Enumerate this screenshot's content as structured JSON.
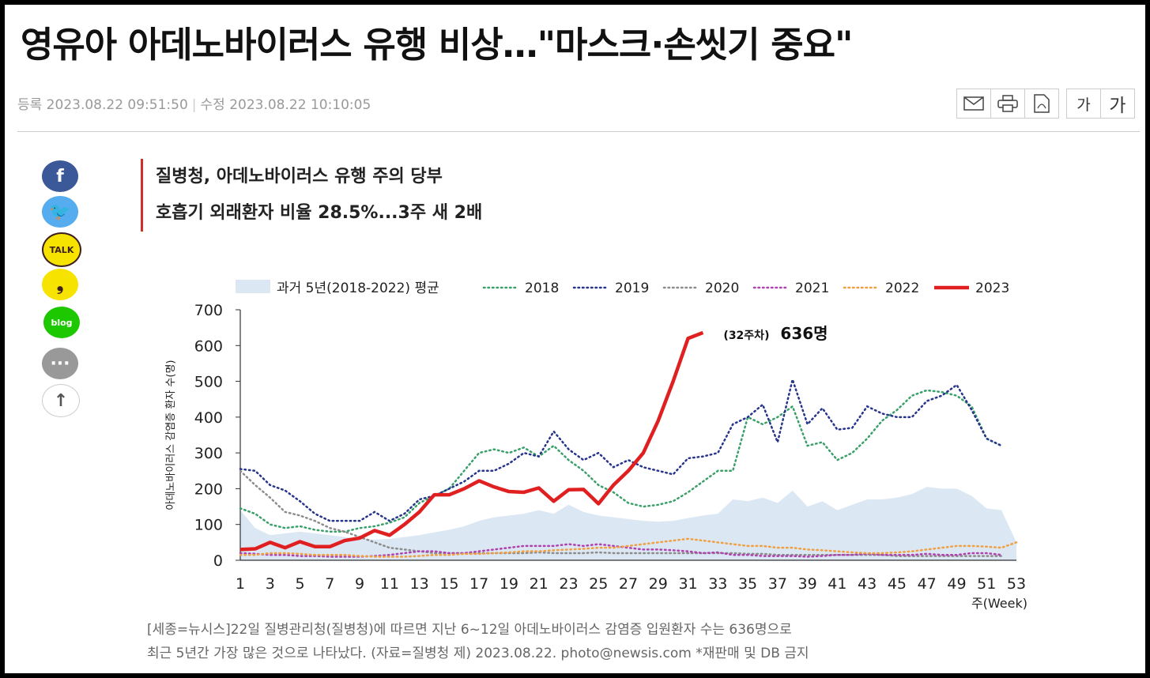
{
  "article": {
    "headline": "영유아 아데노바이러스 유행 비상…\"마스크·손씻기 중요\"",
    "registered": "등록 2023.08.22 09:51:50",
    "modified": "수정 2023.08.22 10:10:05",
    "summary": [
      "질병청, 아데노바이러스 유행 주의 당부",
      "호흡기 외래환자 비율 28.5%...3주 새 2배"
    ],
    "caption_line1": "[세종=뉴시스]22일 질병관리청(질병청)에 따르면 지난 6~12일 아데노바이러스 감염증 입원환자 수는 636명으로",
    "caption_line2": "최근 5년간 가장 많은 것으로 나타났다. (자료=질병청 제) 2023.08.22. photo@newsis.com  *재판매 및 DB 금지"
  },
  "toolbar": {
    "email_icon": "email-icon",
    "print_icon": "print-icon",
    "pdf_icon": "pdf-icon",
    "font_small": "가",
    "font_large": "가"
  },
  "share": [
    {
      "name": "facebook",
      "label": "f",
      "color": "#3b5998",
      "text_color": "#ffffff"
    },
    {
      "name": "twitter",
      "label": "🐦",
      "color": "#55acee",
      "text_color": "#ffffff"
    },
    {
      "name": "kakaotalk",
      "label": "TALK",
      "color": "#f7e300",
      "text_color": "#3c1e1e"
    },
    {
      "name": "kakaostory",
      "label": "❟",
      "color": "#f7e300",
      "text_color": "#3c1e1e"
    },
    {
      "name": "blog",
      "label": "blog",
      "color": "#1ec800",
      "text_color": "#ffffff"
    },
    {
      "name": "comment",
      "label": "···",
      "color": "#999999",
      "text_color": "#ffffff"
    },
    {
      "name": "top",
      "label": "↑",
      "color": "#ffffff",
      "text_color": "#555555"
    }
  ],
  "chart_data": {
    "type": "line",
    "ylabel": "아데노바이러스 감염증 환자 수(명)",
    "xlabel": "주(Week)",
    "ylim": [
      0,
      700
    ],
    "yticks": [
      0,
      100,
      200,
      300,
      400,
      500,
      600,
      700
    ],
    "xlim": [
      1,
      53
    ],
    "xticks": [
      1,
      3,
      5,
      7,
      9,
      11,
      13,
      15,
      17,
      19,
      21,
      23,
      25,
      27,
      29,
      31,
      33,
      35,
      37,
      39,
      41,
      43,
      45,
      47,
      49,
      51,
      53
    ],
    "legend_position": "top",
    "annotation": {
      "week_label": "(32주차)",
      "value_label": "636명",
      "x": 32,
      "y": 636
    },
    "area": {
      "name": "과거 5년(2018-2022) 평균",
      "color": "#dce7f4",
      "x": [
        1,
        2,
        3,
        4,
        5,
        6,
        7,
        8,
        9,
        10,
        11,
        12,
        13,
        14,
        15,
        16,
        17,
        18,
        19,
        20,
        21,
        22,
        23,
        24,
        25,
        26,
        27,
        28,
        29,
        30,
        31,
        32,
        33,
        34,
        35,
        36,
        37,
        38,
        39,
        40,
        41,
        42,
        43,
        44,
        45,
        46,
        47,
        48,
        49,
        50,
        51,
        52,
        53
      ],
      "values": [
        140,
        90,
        70,
        75,
        80,
        75,
        70,
        65,
        60,
        58,
        60,
        65,
        70,
        78,
        85,
        95,
        110,
        120,
        125,
        130,
        140,
        130,
        155,
        135,
        125,
        120,
        115,
        110,
        108,
        110,
        118,
        125,
        130,
        170,
        165,
        175,
        160,
        195,
        150,
        165,
        140,
        155,
        170,
        170,
        175,
        185,
        205,
        200,
        200,
        180,
        145,
        140,
        50
      ]
    },
    "series": [
      {
        "name": "2018",
        "color": "#3aa06a",
        "style": "dotted",
        "x": [
          1,
          2,
          3,
          4,
          5,
          6,
          7,
          8,
          9,
          10,
          11,
          12,
          13,
          14,
          15,
          16,
          17,
          18,
          19,
          20,
          21,
          22,
          23,
          24,
          25,
          26,
          27,
          28,
          29,
          30,
          31,
          32,
          33,
          34,
          35,
          36,
          37,
          38,
          39,
          40,
          41,
          42,
          43,
          44,
          45,
          46,
          47,
          48,
          49,
          50,
          51,
          52
        ],
        "values": [
          145,
          130,
          100,
          90,
          95,
          85,
          80,
          80,
          90,
          95,
          105,
          120,
          160,
          180,
          200,
          250,
          300,
          310,
          300,
          315,
          290,
          320,
          280,
          250,
          210,
          190,
          160,
          150,
          155,
          165,
          190,
          220,
          250,
          250,
          400,
          380,
          400,
          430,
          320,
          330,
          280,
          300,
          340,
          390,
          420,
          460,
          475,
          470,
          460,
          430,
          340,
          320
        ]
      },
      {
        "name": "2019",
        "color": "#26348c",
        "style": "dotted",
        "x": [
          1,
          2,
          3,
          4,
          5,
          6,
          7,
          8,
          9,
          10,
          11,
          12,
          13,
          14,
          15,
          16,
          17,
          18,
          19,
          20,
          21,
          22,
          23,
          24,
          25,
          26,
          27,
          28,
          29,
          30,
          31,
          32,
          33,
          34,
          35,
          36,
          37,
          38,
          39,
          40,
          41,
          42,
          43,
          44,
          45,
          46,
          47,
          48,
          49,
          50,
          51,
          52
        ],
        "values": [
          255,
          250,
          210,
          195,
          165,
          130,
          110,
          110,
          110,
          135,
          110,
          130,
          170,
          180,
          200,
          220,
          250,
          250,
          270,
          300,
          290,
          360,
          310,
          280,
          300,
          260,
          280,
          260,
          250,
          240,
          285,
          290,
          300,
          380,
          400,
          435,
          330,
          505,
          380,
          425,
          365,
          370,
          430,
          410,
          400,
          400,
          445,
          460,
          490,
          420,
          340,
          320
        ]
      },
      {
        "name": "2020",
        "color": "#8c8c8c",
        "style": "dotted",
        "x": [
          1,
          2,
          3,
          4,
          5,
          6,
          7,
          8,
          9,
          10,
          11,
          12,
          13,
          14,
          15,
          16,
          17,
          18,
          19,
          20,
          21,
          22,
          23,
          24,
          25,
          26,
          27,
          28,
          29,
          30,
          31,
          32,
          33,
          34,
          35,
          36,
          37,
          38,
          39,
          40,
          41,
          42,
          43,
          44,
          45,
          46,
          47,
          48,
          49,
          50,
          51,
          52
        ],
        "values": [
          250,
          210,
          175,
          135,
          125,
          110,
          90,
          80,
          65,
          50,
          35,
          30,
          25,
          20,
          20,
          20,
          20,
          20,
          20,
          20,
          22,
          20,
          20,
          20,
          22,
          20,
          20,
          20,
          20,
          20,
          20,
          20,
          20,
          20,
          18,
          18,
          15,
          15,
          15,
          15,
          15,
          15,
          15,
          15,
          12,
          12,
          12,
          12,
          12,
          12,
          12,
          12
        ]
      },
      {
        "name": "2021",
        "color": "#b042b0",
        "style": "dotted",
        "x": [
          1,
          2,
          3,
          4,
          5,
          6,
          7,
          8,
          9,
          10,
          11,
          12,
          13,
          14,
          15,
          16,
          17,
          18,
          19,
          20,
          21,
          22,
          23,
          24,
          25,
          26,
          27,
          28,
          29,
          30,
          31,
          32,
          33,
          34,
          35,
          36,
          37,
          38,
          39,
          40,
          41,
          42,
          43,
          44,
          45,
          46,
          47,
          48,
          49,
          50,
          51,
          52
        ],
        "values": [
          20,
          18,
          15,
          15,
          12,
          12,
          10,
          10,
          10,
          12,
          15,
          20,
          25,
          25,
          20,
          20,
          25,
          30,
          35,
          40,
          40,
          40,
          45,
          40,
          45,
          40,
          35,
          30,
          30,
          28,
          25,
          20,
          22,
          15,
          15,
          12,
          12,
          12,
          10,
          12,
          15,
          15,
          18,
          15,
          15,
          15,
          18,
          15,
          15,
          20,
          20,
          15
        ]
      },
      {
        "name": "2022",
        "color": "#f0a040",
        "style": "dotted",
        "x": [
          1,
          2,
          3,
          4,
          5,
          6,
          7,
          8,
          9,
          10,
          11,
          12,
          13,
          14,
          15,
          16,
          17,
          18,
          19,
          20,
          21,
          22,
          23,
          24,
          25,
          26,
          27,
          28,
          29,
          30,
          31,
          32,
          33,
          34,
          35,
          36,
          37,
          38,
          39,
          40,
          41,
          42,
          43,
          44,
          45,
          46,
          47,
          48,
          49,
          50,
          51,
          52,
          53
        ],
        "values": [
          15,
          15,
          20,
          20,
          18,
          15,
          15,
          15,
          12,
          10,
          10,
          10,
          12,
          15,
          15,
          18,
          18,
          20,
          22,
          25,
          25,
          28,
          30,
          32,
          35,
          35,
          40,
          45,
          50,
          55,
          60,
          55,
          50,
          45,
          40,
          40,
          35,
          35,
          30,
          28,
          25,
          22,
          20,
          20,
          22,
          25,
          30,
          35,
          40,
          40,
          38,
          35,
          50
        ]
      },
      {
        "name": "2023",
        "color": "#e02020",
        "style": "solid",
        "x": [
          1,
          2,
          3,
          4,
          5,
          6,
          7,
          8,
          9,
          10,
          11,
          12,
          13,
          14,
          15,
          16,
          17,
          18,
          19,
          20,
          21,
          22,
          23,
          24,
          25,
          26,
          27,
          28,
          29,
          30,
          31,
          32
        ],
        "values": [
          30,
          32,
          50,
          35,
          52,
          38,
          38,
          55,
          62,
          83,
          70,
          100,
          135,
          183,
          183,
          200,
          222,
          205,
          192,
          190,
          202,
          165,
          197,
          198,
          158,
          210,
          250,
          300,
          390,
          500,
          620,
          636
        ]
      }
    ]
  }
}
